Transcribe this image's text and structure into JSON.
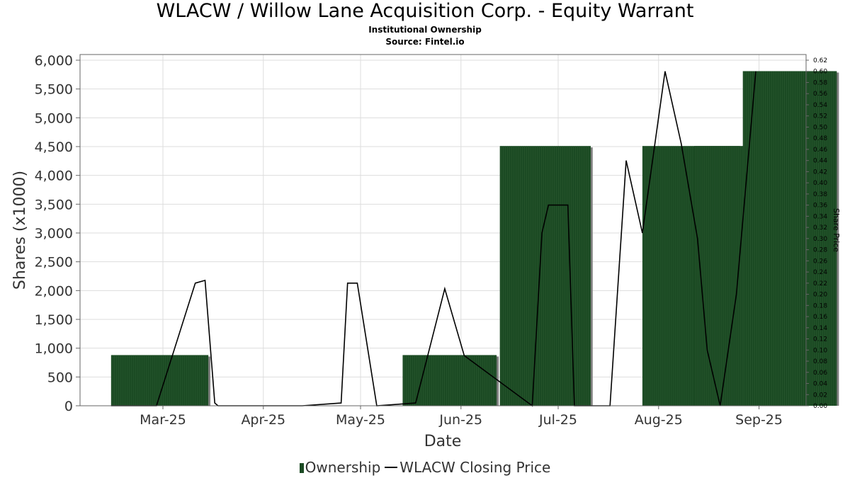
{
  "title": "WLACW / Willow Lane Acquisition Corp. - Equity Warrant",
  "subtitle1": "Institutional Ownership",
  "subtitle2": "Source: Fintel.io",
  "legend": {
    "bar_label": "Ownership",
    "line_label": "WLACW Closing Price"
  },
  "colors": {
    "bar": "#1b4a23",
    "bar_shadow": "#7f7f7f",
    "line": "#000000",
    "grid": "#dddddd"
  },
  "chart_data": {
    "type": "bar",
    "xlabel": "Date",
    "ylabel": "Shares (x1000)",
    "y2label": "Share Price",
    "ylim": [
      0,
      6000
    ],
    "y2lim": [
      0,
      0.62
    ],
    "x_ticks": [
      "Mar-25",
      "Apr-25",
      "May-25",
      "Jun-25",
      "Jul-25",
      "Aug-25",
      "Sep-25"
    ],
    "y_ticks": [
      "0",
      "500",
      "1,000",
      "1,500",
      "2,000",
      "2,500",
      "3,000",
      "3,500",
      "4,000",
      "4,500",
      "5,000",
      "5,500",
      "6,000"
    ],
    "y2_ticks": [
      "0.00",
      "0.02",
      "0.04",
      "0.06",
      "0.08",
      "0.10",
      "0.12",
      "0.14",
      "0.16",
      "0.18",
      "0.20",
      "0.22",
      "0.24",
      "0.26",
      "0.28",
      "0.30",
      "0.32",
      "0.34",
      "0.36",
      "0.38",
      "0.40",
      "0.42",
      "0.44",
      "0.46",
      "0.48",
      "0.50",
      "0.52",
      "0.54",
      "0.56",
      "0.58",
      "0.60",
      "0.62"
    ],
    "series": [
      {
        "name": "Ownership",
        "type": "bar",
        "bars": [
          {
            "start": "2025-02-13",
            "end": "2025-03-15",
            "value": 880
          },
          {
            "start": "2025-05-14",
            "end": "2025-06-12",
            "value": 880
          },
          {
            "start": "2025-06-13",
            "end": "2025-07-11",
            "value": 4510
          },
          {
            "start": "2025-07-27",
            "end": "2025-08-26",
            "value": 4510
          },
          {
            "start": "2025-08-12",
            "end": "2025-09-10",
            "value": 4510
          },
          {
            "start": "2025-08-27",
            "end": "2025-09-25",
            "value": 5810
          }
        ]
      },
      {
        "name": "WLACW Closing Price",
        "type": "line",
        "points": [
          [
            "2025-02-13",
            0.0
          ],
          [
            "2025-02-27",
            0.0
          ],
          [
            "2025-03-11",
            0.22
          ],
          [
            "2025-03-14",
            0.225
          ],
          [
            "2025-03-17",
            0.005
          ],
          [
            "2025-03-18",
            0.0
          ],
          [
            "2025-04-13",
            0.0
          ],
          [
            "2025-04-25",
            0.005
          ],
          [
            "2025-04-27",
            0.22
          ],
          [
            "2025-04-30",
            0.22
          ],
          [
            "2025-05-06",
            0.0
          ],
          [
            "2025-05-18",
            0.005
          ],
          [
            "2025-05-27",
            0.21
          ],
          [
            "2025-06-02",
            0.09
          ],
          [
            "2025-06-23",
            0.0
          ],
          [
            "2025-06-26",
            0.31
          ],
          [
            "2025-06-28",
            0.36
          ],
          [
            "2025-07-04",
            0.36
          ],
          [
            "2025-07-06",
            0.0
          ],
          [
            "2025-07-17",
            0.0
          ],
          [
            "2025-07-22",
            0.44
          ],
          [
            "2025-07-27",
            0.31
          ],
          [
            "2025-08-03",
            0.6
          ],
          [
            "2025-08-08",
            0.47
          ],
          [
            "2025-08-13",
            0.3
          ],
          [
            "2025-08-16",
            0.1
          ],
          [
            "2025-08-20",
            0.0
          ],
          [
            "2025-08-25",
            0.2
          ],
          [
            "2025-08-31",
            0.6
          ]
        ]
      }
    ],
    "grid": true,
    "legend_position": "bottom-center"
  }
}
